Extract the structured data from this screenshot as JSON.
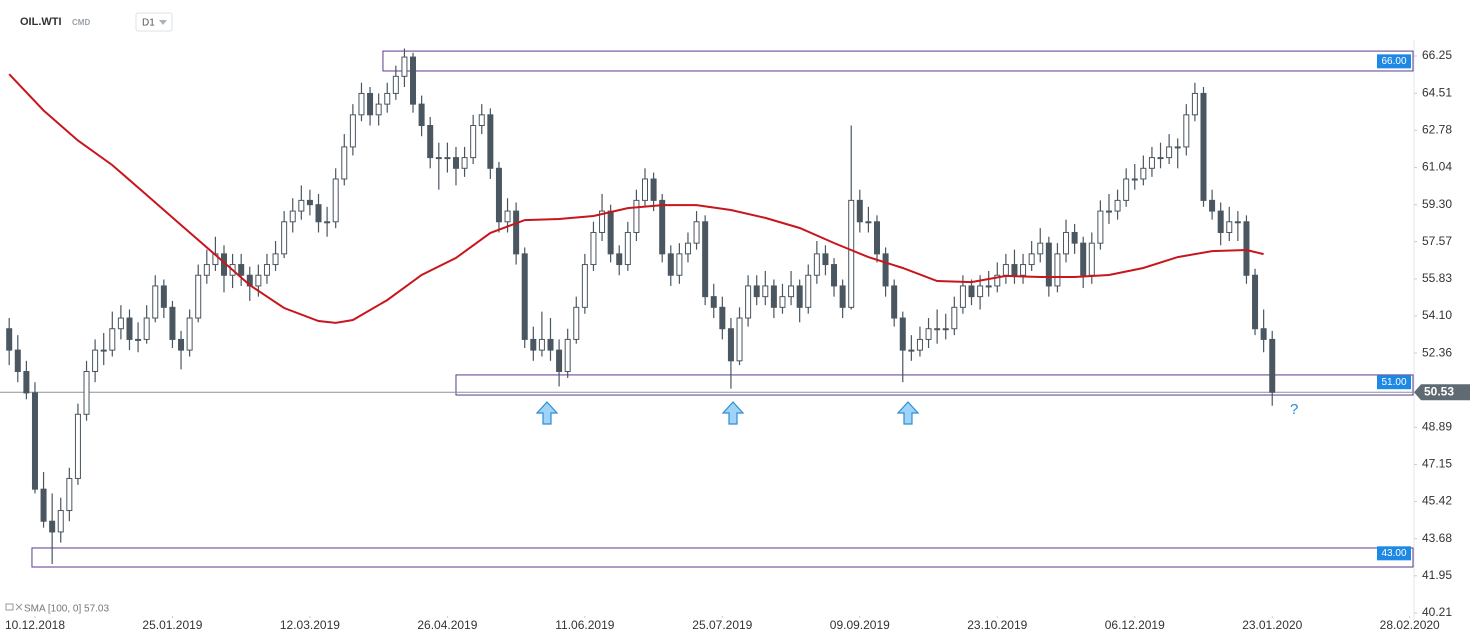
{
  "chart_data": {
    "type": "candlestick",
    "title": "OIL.WTI",
    "subtitle": "CMD",
    "interval": "D1",
    "annotation": "?",
    "ylim": [
      40.21,
      66.25
    ],
    "yticks": [
      66.25,
      64.51,
      62.78,
      61.04,
      {
        "value": 59.3,
        "label": "59.30"
      },
      57.57,
      55.83,
      {
        "value": 54.1,
        "label": "54.10"
      },
      52.36,
      48.89,
      47.15,
      45.42,
      43.68,
      41.95,
      40.21
    ],
    "xlim": [
      -1.07,
      163.5
    ],
    "xticks": [
      {
        "value": 3,
        "label": "10.12.2018"
      },
      {
        "value": 19,
        "label": "25.01.2019"
      },
      {
        "value": 35,
        "label": "12.03.2019"
      },
      {
        "value": 51,
        "label": "26.04.2019"
      },
      {
        "value": 67,
        "label": "11.06.2019"
      },
      {
        "value": 83,
        "label": "25.07.2019"
      },
      {
        "value": 99,
        "label": "09.09.2019"
      },
      {
        "value": 115,
        "label": "23.10.2019"
      },
      {
        "value": 131,
        "label": "06.12.2019"
      },
      {
        "value": 147,
        "label": "23.01.2020"
      },
      {
        "value": 163,
        "label": "28.02.2020"
      }
    ],
    "grid": false,
    "up_color": "#ffffff",
    "down_color": "#4a5660",
    "edge_color": "#4a5660",
    "candles": [
      [
        53.5,
        54.0,
        51.8,
        52.5
      ],
      [
        52.5,
        53.2,
        51.0,
        51.5
      ],
      [
        51.5,
        52.0,
        50.2,
        50.5
      ],
      [
        50.5,
        51.0,
        45.8,
        46.0
      ],
      [
        46.0,
        46.8,
        44.2,
        44.5
      ],
      [
        44.5,
        45.8,
        42.5,
        44.0
      ],
      [
        44.0,
        45.6,
        43.5,
        45.0
      ],
      [
        45.0,
        47.0,
        44.5,
        46.5
      ],
      [
        46.5,
        50.0,
        46.2,
        49.5
      ],
      [
        49.5,
        52.0,
        49.2,
        51.5
      ],
      [
        51.5,
        53.0,
        51.0,
        52.5
      ],
      [
        52.5,
        53.3,
        51.8,
        52.5
      ],
      [
        52.5,
        54.3,
        52.2,
        53.5
      ],
      [
        53.5,
        54.6,
        53.0,
        54.0
      ],
      [
        54.0,
        54.4,
        52.5,
        53.0
      ],
      [
        53.0,
        53.8,
        52.4,
        53.0
      ],
      [
        53.0,
        54.6,
        52.8,
        54.0
      ],
      [
        54.0,
        56.0,
        53.8,
        55.5
      ],
      [
        55.5,
        55.8,
        54.0,
        54.5
      ],
      [
        54.5,
        54.8,
        52.6,
        53.0
      ],
      [
        53.0,
        53.4,
        51.6,
        52.5
      ],
      [
        52.5,
        54.4,
        52.2,
        54.0
      ],
      [
        54.0,
        56.5,
        53.8,
        56.0
      ],
      [
        56.0,
        57.2,
        55.6,
        56.5
      ],
      [
        56.5,
        57.8,
        56.2,
        57.0
      ],
      [
        57.0,
        57.4,
        55.2,
        56.0
      ],
      [
        56.0,
        57.0,
        55.4,
        56.5
      ],
      [
        56.5,
        57.0,
        55.5,
        56.0
      ],
      [
        56.0,
        56.4,
        54.8,
        55.5
      ],
      [
        55.5,
        56.5,
        55.0,
        56.0
      ],
      [
        56.0,
        57.0,
        55.6,
        56.5
      ],
      [
        56.5,
        57.6,
        56.2,
        57.0
      ],
      [
        57.0,
        59.0,
        56.8,
        58.5
      ],
      [
        58.5,
        59.6,
        58.0,
        59.0
      ],
      [
        59.0,
        60.2,
        58.6,
        59.5
      ],
      [
        59.5,
        60.0,
        58.8,
        59.3
      ],
      [
        59.3,
        59.8,
        58.0,
        58.5
      ],
      [
        58.5,
        59.2,
        57.8,
        58.5
      ],
      [
        58.5,
        61.0,
        58.2,
        60.5
      ],
      [
        60.5,
        62.6,
        60.2,
        62.0
      ],
      [
        62.0,
        64.0,
        61.6,
        63.5
      ],
      [
        63.5,
        65.0,
        63.2,
        64.5
      ],
      [
        64.5,
        64.8,
        63.0,
        63.5
      ],
      [
        63.5,
        64.5,
        63.0,
        64.0
      ],
      [
        64.0,
        65.0,
        63.6,
        64.5
      ],
      [
        64.5,
        65.8,
        64.2,
        65.3
      ],
      [
        65.3,
        66.6,
        64.8,
        66.2
      ],
      [
        66.2,
        66.4,
        63.6,
        64.0
      ],
      [
        64.0,
        64.4,
        62.5,
        63.0
      ],
      [
        63.0,
        63.4,
        61.0,
        61.5
      ],
      [
        61.5,
        62.2,
        60.0,
        61.5
      ],
      [
        61.5,
        62.2,
        60.8,
        61.5
      ],
      [
        61.5,
        62.0,
        60.2,
        61.0
      ],
      [
        61.0,
        62.0,
        60.6,
        61.5
      ],
      [
        61.5,
        63.5,
        61.2,
        63.0
      ],
      [
        63.0,
        64.0,
        62.6,
        63.5
      ],
      [
        63.5,
        63.8,
        60.5,
        61.0
      ],
      [
        61.0,
        61.3,
        58.0,
        58.5
      ],
      [
        58.5,
        59.6,
        58.0,
        59.0
      ],
      [
        59.0,
        59.4,
        56.5,
        57.0
      ],
      [
        57.0,
        57.3,
        52.6,
        53.0
      ],
      [
        53.0,
        53.6,
        52.0,
        52.5
      ],
      [
        52.5,
        54.3,
        52.2,
        53.0
      ],
      [
        53.0,
        54.0,
        52.0,
        52.5
      ],
      [
        52.5,
        53.0,
        50.8,
        51.5
      ],
      [
        51.5,
        53.5,
        51.2,
        53.0
      ],
      [
        53.0,
        55.0,
        52.8,
        54.5
      ],
      [
        54.5,
        57.0,
        54.2,
        56.5
      ],
      [
        56.5,
        58.5,
        56.2,
        58.0
      ],
      [
        58.0,
        59.8,
        57.6,
        59.0
      ],
      [
        59.0,
        59.3,
        56.6,
        57.0
      ],
      [
        57.0,
        57.4,
        56.0,
        56.5
      ],
      [
        56.5,
        58.5,
        56.2,
        58.0
      ],
      [
        58.0,
        60.0,
        57.6,
        59.5
      ],
      [
        59.5,
        61.0,
        59.2,
        60.5
      ],
      [
        60.5,
        60.8,
        59.0,
        59.5
      ],
      [
        59.5,
        59.8,
        56.6,
        57.0
      ],
      [
        57.0,
        57.4,
        55.5,
        56.0
      ],
      [
        56.0,
        57.5,
        55.6,
        57.0
      ],
      [
        57.0,
        58.0,
        56.6,
        57.5
      ],
      [
        57.5,
        59.0,
        57.2,
        58.5
      ],
      [
        58.5,
        58.8,
        54.6,
        55.0
      ],
      [
        55.0,
        55.6,
        54.0,
        54.5
      ],
      [
        54.5,
        55.0,
        53.0,
        53.5
      ],
      [
        53.5,
        54.0,
        50.7,
        52.0
      ],
      [
        52.0,
        54.5,
        51.8,
        54.0
      ],
      [
        54.0,
        56.0,
        53.6,
        55.5
      ],
      [
        55.5,
        56.0,
        54.6,
        55.0
      ],
      [
        55.0,
        56.2,
        54.6,
        55.5
      ],
      [
        55.5,
        55.8,
        54.0,
        54.5
      ],
      [
        54.5,
        55.6,
        54.2,
        55.0
      ],
      [
        55.0,
        56.2,
        54.6,
        55.5
      ],
      [
        55.5,
        55.8,
        53.8,
        54.5
      ],
      [
        54.5,
        56.5,
        54.2,
        56.0
      ],
      [
        56.0,
        57.6,
        55.6,
        57.0
      ],
      [
        57.0,
        57.4,
        56.0,
        56.5
      ],
      [
        56.5,
        56.8,
        55.0,
        55.5
      ],
      [
        55.5,
        55.8,
        54.0,
        54.5
      ],
      [
        54.5,
        63.0,
        54.4,
        59.5
      ],
      [
        59.5,
        60.0,
        58.0,
        58.5
      ],
      [
        58.5,
        59.2,
        58.0,
        58.5
      ],
      [
        58.5,
        58.8,
        56.6,
        57.0
      ],
      [
        57.0,
        57.3,
        55.0,
        55.5
      ],
      [
        55.5,
        55.8,
        53.6,
        54.0
      ],
      [
        54.0,
        54.3,
        51.0,
        52.5
      ],
      [
        52.5,
        53.2,
        52.0,
        52.5
      ],
      [
        52.5,
        53.6,
        52.2,
        53.0
      ],
      [
        53.0,
        54.0,
        52.6,
        53.5
      ],
      [
        53.5,
        54.4,
        52.8,
        53.5
      ],
      [
        53.5,
        54.2,
        53.0,
        53.5
      ],
      [
        53.5,
        55.0,
        53.2,
        54.5
      ],
      [
        54.5,
        56.0,
        54.2,
        55.5
      ],
      [
        55.5,
        55.8,
        54.6,
        55.0
      ],
      [
        55.0,
        56.0,
        54.4,
        55.5
      ],
      [
        55.5,
        56.2,
        55.0,
        55.5
      ],
      [
        55.5,
        56.6,
        55.2,
        56.0
      ],
      [
        56.0,
        57.0,
        55.6,
        56.5
      ],
      [
        56.5,
        57.2,
        55.6,
        56.0
      ],
      [
        56.0,
        57.0,
        55.6,
        56.5
      ],
      [
        56.5,
        57.6,
        56.2,
        57.0
      ],
      [
        57.0,
        58.2,
        56.6,
        57.5
      ],
      [
        57.5,
        57.8,
        55.0,
        55.5
      ],
      [
        55.5,
        57.5,
        55.2,
        57.0
      ],
      [
        57.0,
        58.6,
        56.6,
        58.0
      ],
      [
        58.0,
        58.4,
        57.0,
        57.5
      ],
      [
        57.5,
        57.8,
        55.4,
        56.0
      ],
      [
        56.0,
        58.0,
        55.6,
        57.5
      ],
      [
        57.5,
        59.5,
        57.2,
        59.0
      ],
      [
        59.0,
        59.8,
        58.4,
        59.0
      ],
      [
        59.0,
        60.0,
        58.6,
        59.5
      ],
      [
        59.5,
        61.0,
        59.2,
        60.5
      ],
      [
        60.5,
        61.2,
        60.0,
        60.5
      ],
      [
        60.5,
        61.6,
        60.2,
        61.0
      ],
      [
        61.0,
        62.0,
        60.6,
        61.5
      ],
      [
        61.5,
        62.2,
        61.0,
        61.5
      ],
      [
        61.5,
        62.6,
        61.2,
        62.0
      ],
      [
        62.0,
        62.4,
        61.0,
        62.0
      ],
      [
        62.0,
        64.0,
        61.6,
        63.5
      ],
      [
        63.5,
        65.0,
        63.2,
        64.5
      ],
      [
        64.5,
        64.8,
        59.2,
        59.5
      ],
      [
        59.5,
        60.0,
        58.6,
        59.0
      ],
      [
        59.0,
        59.4,
        57.4,
        58.0
      ],
      [
        58.0,
        59.2,
        57.6,
        58.5
      ],
      [
        58.5,
        59.0,
        57.6,
        58.5
      ],
      [
        58.5,
        58.8,
        55.6,
        56.0
      ],
      [
        56.0,
        56.3,
        53.2,
        53.5
      ],
      [
        53.5,
        54.4,
        52.4,
        53.0
      ],
      [
        53.0,
        53.4,
        49.9,
        50.53
      ]
    ],
    "sma": {
      "name": "SMA [100, 0] 57.03",
      "color": "#c8161d",
      "x": [
        0,
        4,
        8,
        12,
        16,
        20,
        24,
        28,
        32,
        36,
        38,
        40,
        44,
        48,
        52,
        56,
        60,
        64,
        68,
        72,
        76,
        80,
        84,
        88,
        92,
        96,
        100,
        104,
        108,
        112,
        116,
        120,
        124,
        128,
        132,
        136,
        140,
        144,
        146
      ],
      "values": [
        65.4,
        63.7,
        62.3,
        61.15,
        59.75,
        58.35,
        56.95,
        55.54,
        54.47,
        53.86,
        53.77,
        53.91,
        54.84,
        56.01,
        56.81,
        57.98,
        58.58,
        58.63,
        58.77,
        59.14,
        59.28,
        59.28,
        59.05,
        58.68,
        58.21,
        57.51,
        56.85,
        56.34,
        55.73,
        55.68,
        55.97,
        55.92,
        55.92,
        56.01,
        56.34,
        56.85,
        57.13,
        57.18,
        56.99
      ]
    },
    "zones": [
      {
        "high": 66.48,
        "low": 65.55,
        "start": 43.5,
        "level": {
          "value": 66,
          "label": "66.00"
        }
      },
      {
        "high": 51.34,
        "low": 50.4,
        "start": 52,
        "level": {
          "value": 51,
          "label": "51.00"
        }
      },
      {
        "high": 43.25,
        "low": 42.36,
        "start": 2.65,
        "level": {
          "value": 43,
          "label": "43.00"
        }
      }
    ],
    "zone_color": "#5b3a8c",
    "level_color": "#1e88e5",
    "last_price": 50.53,
    "last_price_color": "#5f6a72"
  }
}
